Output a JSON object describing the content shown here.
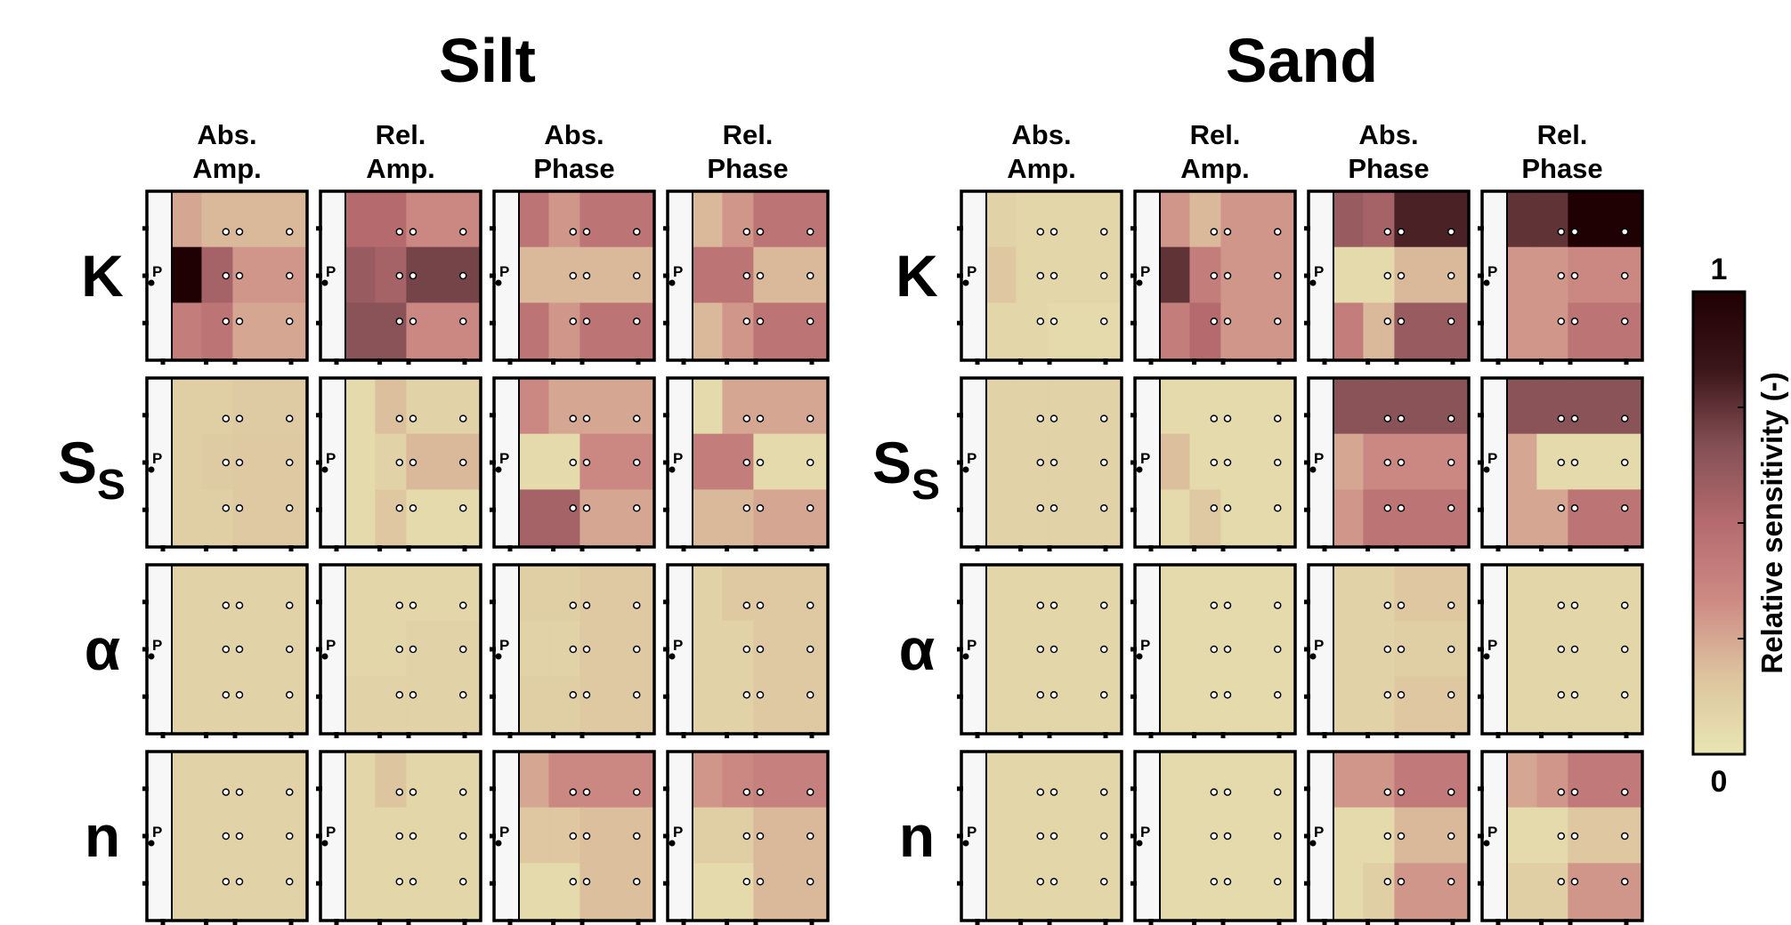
{
  "chart_data": {
    "type": "heatmap",
    "groups": [
      "Silt",
      "Sand"
    ],
    "columns": [
      {
        "line1": "Abs.",
        "line2": "Amp."
      },
      {
        "line1": "Rel.",
        "line2": "Amp."
      },
      {
        "line1": "Abs.",
        "line2": "Phase"
      },
      {
        "line1": "Rel.",
        "line2": "Phase"
      }
    ],
    "parameters": [
      {
        "main": "K",
        "sub": ""
      },
      {
        "main": "S",
        "sub": "S"
      },
      {
        "main": "α",
        "sub": ""
      },
      {
        "main": "n",
        "sub": ""
      }
    ],
    "pumping_label": "P",
    "colorbar": {
      "min_label": "0",
      "max_label": "1",
      "label": "Relative sensitivity (-)",
      "range": [
        0,
        1
      ],
      "colors": [
        "#e8e6b2",
        "#ddc49f",
        "#cd8a84",
        "#b56b6e",
        "#845055",
        "#3b1519",
        "#1f0003"
      ]
    },
    "cell_grid": {
      "rows": 3,
      "cols": 3
    },
    "values": {
      "Silt": {
        "K": [
          [
            [
              0.25,
              0.2,
              0.2
            ],
            [
              1.0,
              0.55,
              0.3
            ],
            [
              0.4,
              0.45,
              0.25
            ]
          ],
          [
            [
              0.5,
              0.5,
              0.35
            ],
            [
              0.6,
              0.55,
              0.7
            ],
            [
              0.65,
              0.65,
              0.35
            ]
          ],
          [
            [
              0.45,
              0.3,
              0.45
            ],
            [
              0.2,
              0.2,
              0.2
            ],
            [
              0.45,
              0.3,
              0.45
            ]
          ],
          [
            [
              0.2,
              0.3,
              0.45
            ],
            [
              0.45,
              0.45,
              0.2
            ],
            [
              0.2,
              0.3,
              0.45
            ]
          ]
        ],
        "Ss": [
          [
            [
              0.12,
              0.12,
              0.13
            ],
            [
              0.12,
              0.13,
              0.14
            ],
            [
              0.12,
              0.12,
              0.14
            ]
          ],
          [
            [
              0.06,
              0.18,
              0.1
            ],
            [
              0.06,
              0.1,
              0.2
            ],
            [
              0.06,
              0.15,
              0.06
            ]
          ],
          [
            [
              0.35,
              0.25,
              0.25
            ],
            [
              0.06,
              0.06,
              0.35
            ],
            [
              0.55,
              0.55,
              0.25
            ]
          ],
          [
            [
              0.06,
              0.25,
              0.25
            ],
            [
              0.4,
              0.4,
              0.06
            ],
            [
              0.2,
              0.2,
              0.25
            ]
          ]
        ],
        "alpha": [
          [
            [
              0.1,
              0.1,
              0.1
            ],
            [
              0.1,
              0.1,
              0.1
            ],
            [
              0.1,
              0.1,
              0.1
            ]
          ],
          [
            [
              0.08,
              0.08,
              0.08
            ],
            [
              0.08,
              0.08,
              0.1
            ],
            [
              0.1,
              0.1,
              0.1
            ]
          ],
          [
            [
              0.12,
              0.12,
              0.14
            ],
            [
              0.1,
              0.1,
              0.14
            ],
            [
              0.12,
              0.12,
              0.14
            ]
          ],
          [
            [
              0.1,
              0.14,
              0.14
            ],
            [
              0.1,
              0.1,
              0.14
            ],
            [
              0.1,
              0.1,
              0.14
            ]
          ]
        ],
        "n": [
          [
            [
              0.1,
              0.1,
              0.1
            ],
            [
              0.1,
              0.1,
              0.1
            ],
            [
              0.1,
              0.1,
              0.1
            ]
          ],
          [
            [
              0.08,
              0.16,
              0.08
            ],
            [
              0.08,
              0.08,
              0.08
            ],
            [
              0.08,
              0.08,
              0.08
            ]
          ],
          [
            [
              0.25,
              0.35,
              0.35
            ],
            [
              0.15,
              0.15,
              0.18
            ],
            [
              0.06,
              0.06,
              0.18
            ]
          ],
          [
            [
              0.3,
              0.35,
              0.38
            ],
            [
              0.12,
              0.12,
              0.2
            ],
            [
              0.06,
              0.06,
              0.2
            ]
          ]
        ]
      },
      "Sand": {
        "K": [
          [
            [
              0.1,
              0.08,
              0.08
            ],
            [
              0.15,
              0.08,
              0.08
            ],
            [
              0.08,
              0.08,
              0.06
            ]
          ],
          [
            [
              0.3,
              0.2,
              0.3
            ],
            [
              0.75,
              0.4,
              0.3
            ],
            [
              0.4,
              0.5,
              0.3
            ]
          ],
          [
            [
              0.6,
              0.55,
              0.8
            ],
            [
              0.06,
              0.06,
              0.2
            ],
            [
              0.4,
              0.2,
              0.6
            ]
          ],
          [
            [
              0.75,
              0.75,
              1.0
            ],
            [
              0.3,
              0.3,
              0.35
            ],
            [
              0.3,
              0.3,
              0.45
            ]
          ]
        ],
        "Ss": [
          [
            [
              0.1,
              0.1,
              0.1
            ],
            [
              0.1,
              0.1,
              0.1
            ],
            [
              0.1,
              0.1,
              0.1
            ]
          ],
          [
            [
              0.06,
              0.06,
              0.06
            ],
            [
              0.18,
              0.06,
              0.06
            ],
            [
              0.06,
              0.14,
              0.06
            ]
          ],
          [
            [
              0.65,
              0.65,
              0.65
            ],
            [
              0.25,
              0.35,
              0.35
            ],
            [
              0.3,
              0.45,
              0.45
            ]
          ],
          [
            [
              0.65,
              0.65,
              0.65
            ],
            [
              0.25,
              0.06,
              0.06
            ],
            [
              0.25,
              0.25,
              0.45
            ]
          ]
        ],
        "alpha": [
          [
            [
              0.08,
              0.08,
              0.08
            ],
            [
              0.08,
              0.08,
              0.08
            ],
            [
              0.08,
              0.08,
              0.08
            ]
          ],
          [
            [
              0.06,
              0.06,
              0.06
            ],
            [
              0.06,
              0.06,
              0.06
            ],
            [
              0.06,
              0.06,
              0.06
            ]
          ],
          [
            [
              0.1,
              0.1,
              0.15
            ],
            [
              0.1,
              0.1,
              0.12
            ],
            [
              0.1,
              0.1,
              0.15
            ]
          ],
          [
            [
              0.08,
              0.08,
              0.08
            ],
            [
              0.08,
              0.08,
              0.08
            ],
            [
              0.08,
              0.08,
              0.08
            ]
          ]
        ],
        "n": [
          [
            [
              0.08,
              0.08,
              0.08
            ],
            [
              0.08,
              0.08,
              0.08
            ],
            [
              0.08,
              0.08,
              0.08
            ]
          ],
          [
            [
              0.06,
              0.06,
              0.06
            ],
            [
              0.06,
              0.06,
              0.06
            ],
            [
              0.06,
              0.06,
              0.06
            ]
          ],
          [
            [
              0.3,
              0.3,
              0.42
            ],
            [
              0.06,
              0.06,
              0.2
            ],
            [
              0.06,
              0.12,
              0.3
            ]
          ],
          [
            [
              0.25,
              0.3,
              0.42
            ],
            [
              0.06,
              0.06,
              0.15
            ],
            [
              0.12,
              0.12,
              0.3
            ]
          ]
        ]
      }
    }
  }
}
